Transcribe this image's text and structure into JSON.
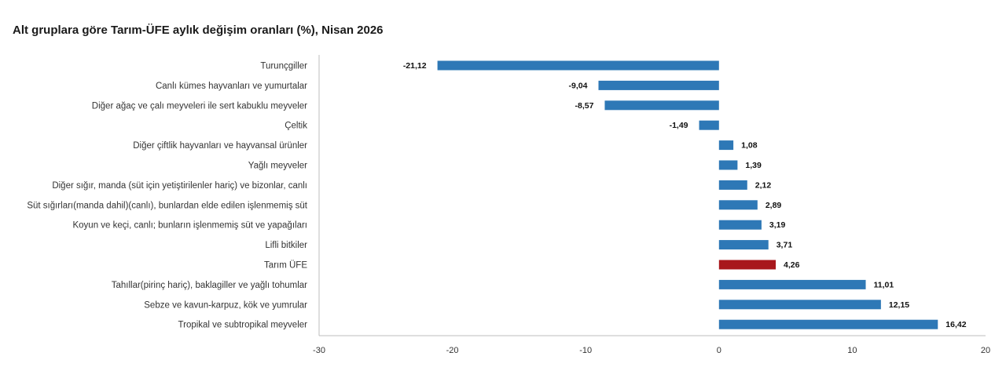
{
  "title": "Alt gruplara göre Tarım-ÜFE aylık değişim oranları (%), Nisan 2026",
  "colors": {
    "bar_default": "#2E78B6",
    "bar_highlight": "#A8171C",
    "axis": "#BDBDBD"
  },
  "chart_data": {
    "type": "bar",
    "orientation": "horizontal",
    "title": "Alt gruplara göre Tarım-ÜFE aylık değişim oranları (%), Nisan 2026",
    "xlabel": "",
    "ylabel": "",
    "xlim": [
      -30,
      20
    ],
    "xticks": [
      -30,
      -20,
      -10,
      0,
      10,
      20
    ],
    "grid": false,
    "legend": "none",
    "highlight_category": "Tarım ÜFE",
    "categories": [
      "Turunçgiller",
      "Canlı kümes hayvanları ve yumurtalar",
      "Diğer ağaç ve çalı meyveleri ile sert kabuklu meyveler",
      "Çeltik",
      "Diğer çiftlik hayvanları ve hayvansal ürünler",
      "Yağlı meyveler",
      "Diğer sığır, manda (süt için yetiştirilenler hariç) ve bizonlar, canlı",
      "Süt sığırları(manda dahil)(canlı), bunlardan elde edilen işlenmemiş süt",
      "Koyun ve keçi, canlı; bunların işlenmemiş süt ve yapağıları",
      "Lifli bitkiler",
      "Tarım ÜFE",
      "Tahıllar(pirinç hariç), baklagiller ve yağlı tohumlar",
      "Sebze ve kavun-karpuz, kök ve yumrular",
      "Tropikal ve subtropikal meyveler"
    ],
    "values": [
      -21.12,
      -9.04,
      -8.57,
      -1.49,
      1.08,
      1.39,
      2.12,
      2.89,
      3.19,
      3.71,
      4.26,
      11.01,
      12.15,
      16.42
    ],
    "value_labels": [
      "-21,12",
      "-9,04",
      "-8,57",
      "-1,49",
      "1,08",
      "1,39",
      "2,12",
      "2,89",
      "3,19",
      "3,71",
      "4,26",
      "11,01",
      "12,15",
      "16,42"
    ]
  }
}
